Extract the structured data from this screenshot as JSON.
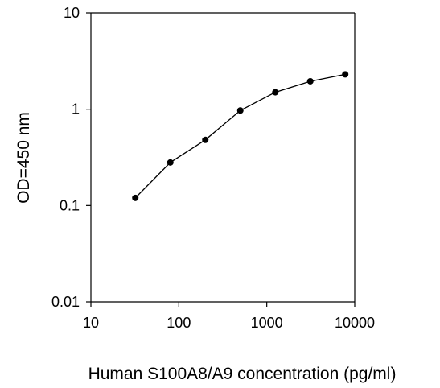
{
  "chart_data": {
    "type": "line",
    "title": "",
    "xlabel": "Human S100A8/A9 concentration (pg/ml)",
    "ylabel": "OD=450 nm",
    "x_scale": "log",
    "y_scale": "log",
    "xlim": [
      10,
      10000
    ],
    "ylim": [
      0.01,
      10
    ],
    "x_ticks": [
      10,
      100,
      1000,
      10000
    ],
    "x_tick_labels": [
      "10",
      "100",
      "1000",
      "10000"
    ],
    "y_ticks": [
      0.01,
      0.1,
      1,
      10
    ],
    "y_tick_labels": [
      "0.01",
      "0.1",
      "1",
      "10"
    ],
    "grid": false,
    "legend": "none",
    "series": [
      {
        "x": [
          32,
          80,
          200,
          500,
          1250,
          3125,
          7800
        ],
        "y": [
          0.12,
          0.28,
          0.48,
          0.97,
          1.5,
          1.95,
          2.3
        ]
      }
    ],
    "colors": {
      "line": "#000000",
      "marker": "#000000",
      "axis": "#000000"
    }
  }
}
